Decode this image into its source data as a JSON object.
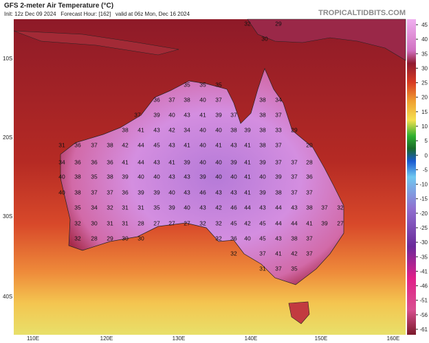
{
  "header": {
    "title": "GFS 2-meter Air Temperature (°C)",
    "subtitle": "Init: 12z Dec 09 2024   Forecast Hour: [162]   valid at 06z Mon, Dec 16 2024",
    "site": "TROPICALTIDBITS.COM"
  },
  "map": {
    "lat_labels": [
      "10S",
      "20S",
      "30S",
      "40S"
    ],
    "lon_labels": [
      "110E",
      "120E",
      "130E",
      "140E",
      "150E",
      "160E"
    ],
    "temperature_labels": [
      32,
      30,
      29,
      35,
      35,
      35,
      36,
      37,
      38,
      40,
      37,
      38,
      34,
      37,
      39,
      40,
      43,
      41,
      39,
      37,
      38,
      37,
      38,
      41,
      43,
      42,
      34,
      40,
      40,
      38,
      39,
      38,
      33,
      29,
      31,
      36,
      37,
      38,
      42,
      44,
      45,
      43,
      41,
      40,
      41,
      43,
      41,
      38,
      37,
      20,
      34,
      36,
      36,
      36,
      41,
      44,
      43,
      41,
      39,
      40,
      40,
      39,
      41,
      39,
      37,
      37,
      28,
      40,
      38,
      35,
      38,
      39,
      40,
      40,
      43,
      43,
      39,
      40,
      40,
      41,
      40,
      39,
      37,
      36,
      40,
      38,
      37,
      37,
      36,
      39,
      39,
      40,
      43,
      46,
      43,
      43,
      41,
      39,
      38,
      37,
      37,
      35,
      34,
      32,
      31,
      31,
      35,
      39,
      40,
      43,
      42,
      46,
      44,
      43,
      44,
      43,
      38,
      37,
      32,
      32,
      30,
      31,
      31,
      28,
      27,
      27,
      27,
      32,
      32,
      45,
      42,
      45,
      44,
      44,
      41,
      39,
      27,
      32,
      28,
      29,
      30,
      30,
      32,
      36,
      40,
      45,
      43,
      38,
      37,
      32,
      37,
      41,
      42,
      37,
      31,
      37,
      35
    ]
  },
  "colorbar": {
    "ticks": [
      45,
      40,
      35,
      30,
      25,
      20,
      15,
      10,
      5,
      0,
      -5,
      -10,
      -15,
      -20,
      -25,
      -30,
      -35,
      -41,
      -46,
      -51,
      -56,
      -61
    ]
  }
}
